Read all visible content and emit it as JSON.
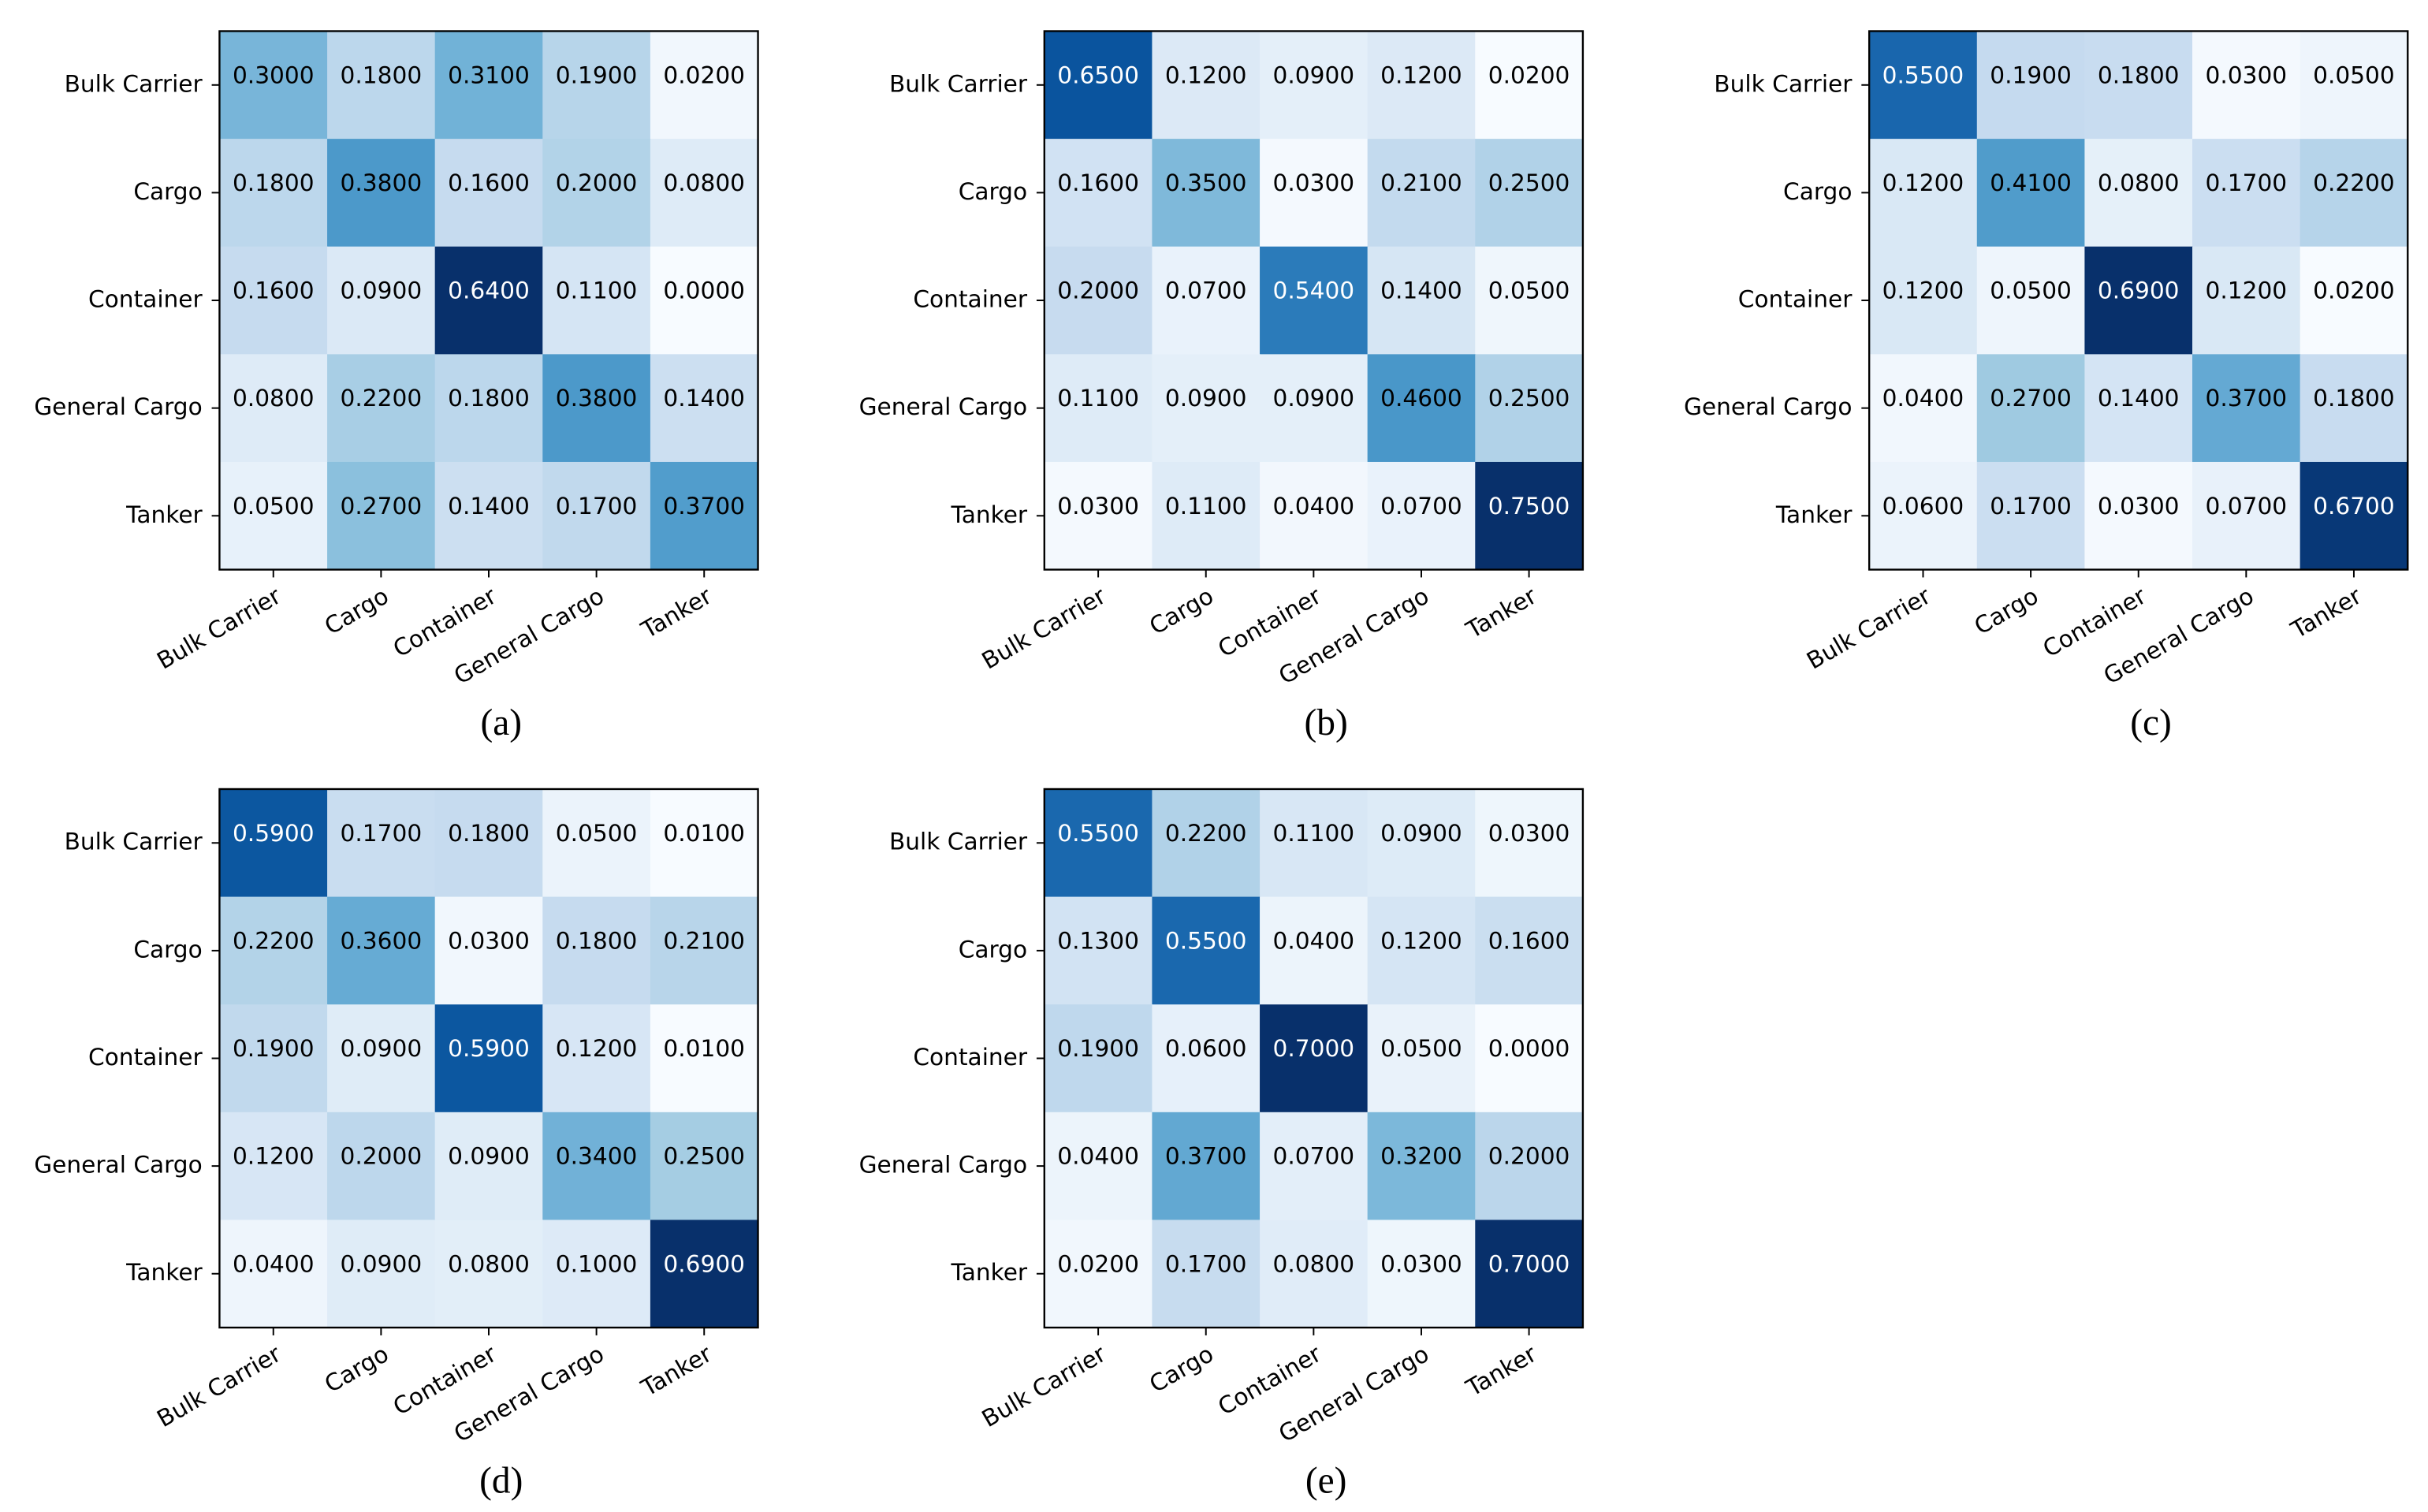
{
  "chart_data": [
    {
      "type": "heatmap",
      "colormap": "Blues",
      "caption": "(a)",
      "categories": [
        "Bulk Carrier",
        "Cargo",
        "Container",
        "General Cargo",
        "Tanker"
      ],
      "y_categories": [
        "Bulk Carrier",
        "Cargo",
        "Container",
        "General Cargo",
        "Tanker"
      ],
      "values": [
        [
          0.3,
          0.18,
          0.31,
          0.19,
          0.02
        ],
        [
          0.18,
          0.38,
          0.16,
          0.2,
          0.08
        ],
        [
          0.16,
          0.09,
          0.64,
          0.11,
          0
        ],
        [
          0.08,
          0.22,
          0.18,
          0.38,
          0.14
        ],
        [
          0.05,
          0.27,
          0.14,
          0.17,
          0.37
        ]
      ],
      "value_labels": [
        [
          "0.3000",
          "0.1800",
          "0.3100",
          "0.1900",
          "0.0200"
        ],
        [
          "0.1800",
          "0.3800",
          "0.1600",
          "0.2000",
          "0.0800"
        ],
        [
          "0.1600",
          "0.0900",
          "0.6400",
          "0.1100",
          "0.0000"
        ],
        [
          "0.0800",
          "0.2200",
          "0.1800",
          "0.3800",
          "0.1400"
        ],
        [
          "0.0500",
          "0.2700",
          "0.1400",
          "0.1700",
          "0.3700"
        ]
      ]
    },
    {
      "type": "heatmap",
      "colormap": "Blues",
      "caption": "(b)",
      "categories": [
        "Bulk Carrier",
        "Cargo",
        "Container",
        "General Cargo",
        "Tanker"
      ],
      "y_categories": [
        "Bulk Carrier",
        "Cargo",
        "Container",
        "General Cargo",
        "Tanker"
      ],
      "values": [
        [
          0.65,
          0.12,
          0.09,
          0.12,
          0.02
        ],
        [
          0.16,
          0.35,
          0.03,
          0.21,
          0.25
        ],
        [
          0.2,
          0.07,
          0.54,
          0.14,
          0.05
        ],
        [
          0.11,
          0.09,
          0.09,
          0.46,
          0.25
        ],
        [
          0.03,
          0.11,
          0.04,
          0.07,
          0.75
        ]
      ],
      "value_labels": [
        [
          "0.6500",
          "0.1200",
          "0.0900",
          "0.1200",
          "0.0200"
        ],
        [
          "0.1600",
          "0.3500",
          "0.0300",
          "0.2100",
          "0.2500"
        ],
        [
          "0.2000",
          "0.0700",
          "0.5400",
          "0.1400",
          "0.0500"
        ],
        [
          "0.1100",
          "0.0900",
          "0.0900",
          "0.4600",
          "0.2500"
        ],
        [
          "0.0300",
          "0.1100",
          "0.0400",
          "0.0700",
          "0.7500"
        ]
      ]
    },
    {
      "type": "heatmap",
      "colormap": "Blues",
      "caption": "(c)",
      "categories": [
        "Bulk Carrier",
        "Cargo",
        "Container",
        "General Cargo",
        "Tanker"
      ],
      "y_categories": [
        "Bulk Carrier",
        "Cargo",
        "Container",
        "General Cargo",
        "Tanker"
      ],
      "values": [
        [
          0.55,
          0.19,
          0.18,
          0.03,
          0.05
        ],
        [
          0.12,
          0.41,
          0.08,
          0.17,
          0.22
        ],
        [
          0.12,
          0.05,
          0.69,
          0.12,
          0.02
        ],
        [
          0.04,
          0.27,
          0.14,
          0.37,
          0.18
        ],
        [
          0.06,
          0.17,
          0.03,
          0.07,
          0.67
        ]
      ],
      "value_labels": [
        [
          "0.5500",
          "0.1900",
          "0.1800",
          "0.0300",
          "0.0500"
        ],
        [
          "0.1200",
          "0.4100",
          "0.0800",
          "0.1700",
          "0.2200"
        ],
        [
          "0.1200",
          "0.0500",
          "0.6900",
          "0.1200",
          "0.0200"
        ],
        [
          "0.0400",
          "0.2700",
          "0.1400",
          "0.3700",
          "0.1800"
        ],
        [
          "0.0600",
          "0.1700",
          "0.0300",
          "0.0700",
          "0.6700"
        ]
      ]
    },
    {
      "type": "heatmap",
      "colormap": "Blues",
      "caption": "(d)",
      "categories": [
        "Bulk Carrier",
        "Cargo",
        "Container",
        "General Cargo",
        "Tanker"
      ],
      "y_categories": [
        "Bulk Carrier",
        "Cargo",
        "Container",
        "General Cargo",
        "Tanker"
      ],
      "values": [
        [
          0.59,
          0.17,
          0.18,
          0.05,
          0.01
        ],
        [
          0.22,
          0.36,
          0.03,
          0.18,
          0.21
        ],
        [
          0.19,
          0.09,
          0.59,
          0.12,
          0.01
        ],
        [
          0.12,
          0.2,
          0.09,
          0.34,
          0.25
        ],
        [
          0.04,
          0.09,
          0.08,
          0.1,
          0.69
        ]
      ],
      "value_labels": [
        [
          "0.5900",
          "0.1700",
          "0.1800",
          "0.0500",
          "0.0100"
        ],
        [
          "0.2200",
          "0.3600",
          "0.0300",
          "0.1800",
          "0.2100"
        ],
        [
          "0.1900",
          "0.0900",
          "0.5900",
          "0.1200",
          "0.0100"
        ],
        [
          "0.1200",
          "0.2000",
          "0.0900",
          "0.3400",
          "0.2500"
        ],
        [
          "0.0400",
          "0.0900",
          "0.0800",
          "0.1000",
          "0.6900"
        ]
      ]
    },
    {
      "type": "heatmap",
      "colormap": "Blues",
      "caption": "(e)",
      "categories": [
        "Bulk Carrier",
        "Cargo",
        "Container",
        "General Cargo",
        "Tanker"
      ],
      "y_categories": [
        "Bulk Carrier",
        "Cargo",
        "Container",
        "General Cargo",
        "Tanker"
      ],
      "values": [
        [
          0.55,
          0.22,
          0.11,
          0.09,
          0.03
        ],
        [
          0.13,
          0.55,
          0.04,
          0.12,
          0.16
        ],
        [
          0.19,
          0.06,
          0.7,
          0.05,
          0
        ],
        [
          0.04,
          0.37,
          0.07,
          0.32,
          0.2
        ],
        [
          0.02,
          0.17,
          0.08,
          0.03,
          0.7
        ]
      ],
      "value_labels": [
        [
          "0.5500",
          "0.2200",
          "0.1100",
          "0.0900",
          "0.0300"
        ],
        [
          "0.1300",
          "0.5500",
          "0.0400",
          "0.1200",
          "0.1600"
        ],
        [
          "0.1900",
          "0.0600",
          "0.7000",
          "0.0500",
          "0.0000"
        ],
        [
          "0.0400",
          "0.3700",
          "0.0700",
          "0.3200",
          "0.2000"
        ],
        [
          "0.0200",
          "0.1700",
          "0.0800",
          "0.0300",
          "0.7000"
        ]
      ]
    }
  ]
}
